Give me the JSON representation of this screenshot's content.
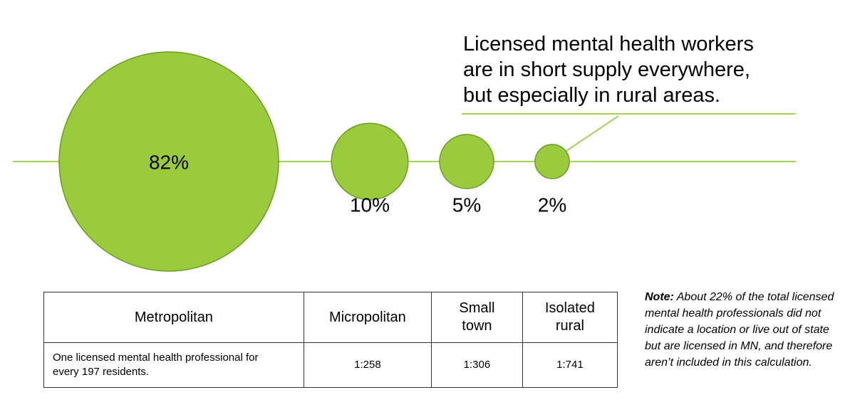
{
  "headline": [
    "Licensed mental health workers",
    "are in short supply everywhere,",
    "but especially in rural areas."
  ],
  "chart_data": {
    "type": "scatter",
    "series": [
      {
        "category": "Metropolitan",
        "value": 82,
        "label": "82%"
      },
      {
        "category": "Micropolitan",
        "value": 10,
        "label": "10%"
      },
      {
        "category": "Small town",
        "value": 5,
        "label": "5%"
      },
      {
        "category": "Isolated rural",
        "value": 2,
        "label": "2%"
      }
    ],
    "color": "#9ACB3C",
    "stroke": "#6D9B25",
    "line_color": "#A6D15C"
  },
  "table": {
    "headers": [
      "Metropolitan",
      "Micropolitan",
      "Small town",
      "Isolated rural"
    ],
    "row": [
      "One licensed mental health professional for every 197 residents.",
      "1:258",
      "1:306",
      "1:741"
    ]
  },
  "note": {
    "label": "Note:",
    "text": " About 22% of the total licensed mental health professionals did not indicate a location or live out of state but are licensed in MN, and therefore aren’t included in this calculation."
  }
}
